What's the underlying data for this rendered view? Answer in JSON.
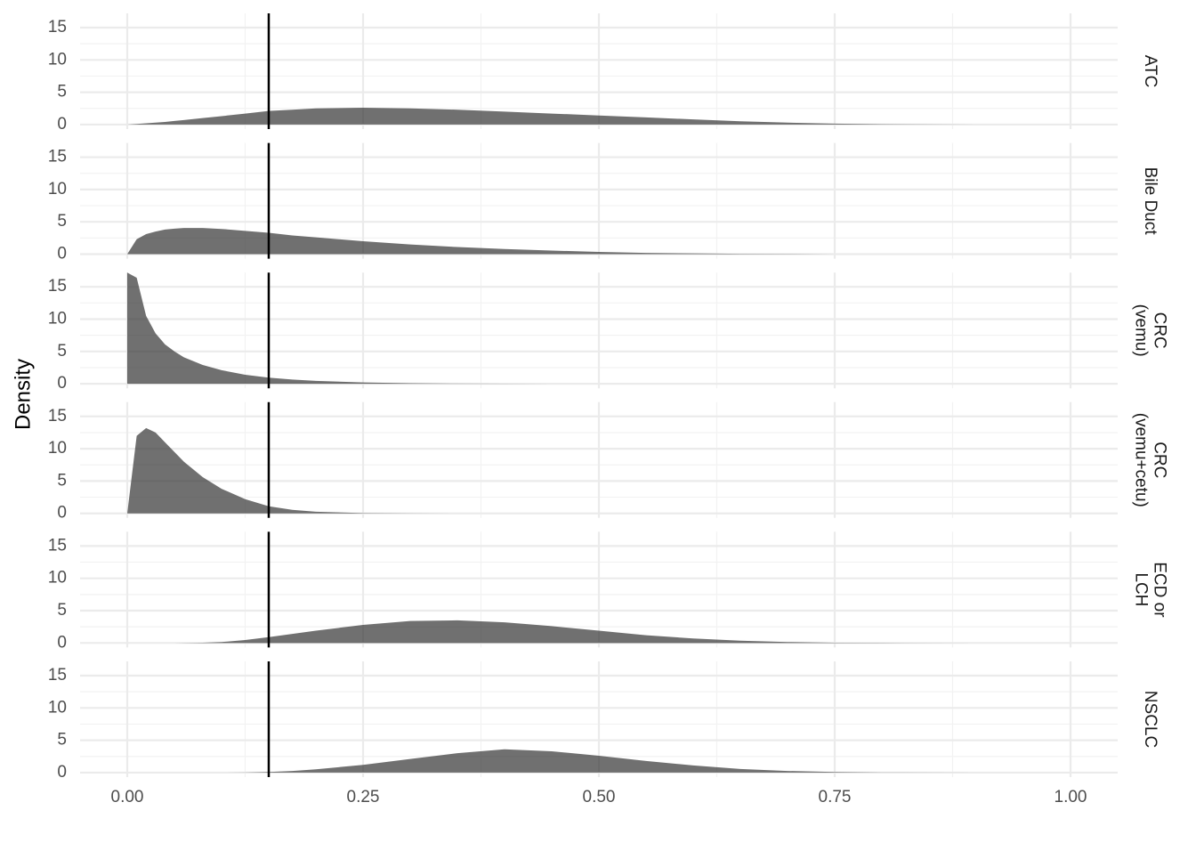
{
  "chart_data": {
    "type": "density",
    "y_label": "Density",
    "x": [
      0,
      0.01,
      0.02,
      0.03,
      0.04,
      0.05,
      0.06,
      0.08,
      0.1,
      0.125,
      0.15,
      0.175,
      0.2,
      0.25,
      0.3,
      0.35,
      0.4,
      0.45,
      0.5,
      0.55,
      0.6,
      0.65,
      0.7,
      0.75,
      0.8,
      0.9,
      1.0
    ],
    "series": [
      {
        "name": "ATC",
        "values": [
          0,
          0.1,
          0.2,
          0.3,
          0.4,
          0.55,
          0.7,
          1.0,
          1.3,
          1.7,
          2.1,
          2.3,
          2.5,
          2.6,
          2.5,
          2.3,
          2.0,
          1.7,
          1.4,
          1.1,
          0.8,
          0.5,
          0.3,
          0.15,
          0.05,
          0,
          0
        ]
      },
      {
        "name": "Bile Duct",
        "values": [
          0,
          2.3,
          3.1,
          3.5,
          3.8,
          3.95,
          4.05,
          4.05,
          3.9,
          3.6,
          3.3,
          2.9,
          2.6,
          2.0,
          1.5,
          1.1,
          0.8,
          0.55,
          0.35,
          0.2,
          0.12,
          0.06,
          0.03,
          0.01,
          0,
          0,
          0
        ]
      },
      {
        "name": "CRC\n(vemu)",
        "values": [
          17.2,
          16.4,
          10.5,
          7.8,
          6.1,
          5.0,
          4.1,
          2.9,
          2.1,
          1.4,
          0.95,
          0.65,
          0.45,
          0.2,
          0.08,
          0.03,
          0.01,
          0,
          0,
          0,
          0,
          0,
          0,
          0,
          0,
          0,
          0
        ]
      },
      {
        "name": "CRC\n(vemu+cetu)",
        "values": [
          0,
          12,
          13.2,
          12.5,
          11,
          9.5,
          8,
          5.6,
          3.8,
          2.2,
          1.1,
          0.55,
          0.25,
          0.05,
          0.01,
          0,
          0,
          0,
          0,
          0,
          0,
          0,
          0,
          0,
          0,
          0,
          0
        ]
      },
      {
        "name": "ECD or\nLCH",
        "values": [
          0,
          0,
          0,
          0,
          0,
          0,
          0.01,
          0.05,
          0.15,
          0.45,
          0.9,
          1.4,
          1.9,
          2.8,
          3.4,
          3.5,
          3.2,
          2.6,
          1.9,
          1.2,
          0.7,
          0.35,
          0.15,
          0.05,
          0.02,
          0,
          0
        ]
      },
      {
        "name": "NSCLC",
        "values": [
          0,
          0,
          0,
          0,
          0,
          0,
          0,
          0,
          0,
          0.03,
          0.1,
          0.25,
          0.5,
          1.2,
          2.1,
          3.0,
          3.6,
          3.3,
          2.6,
          1.8,
          1.1,
          0.55,
          0.25,
          0.1,
          0.03,
          0,
          0
        ]
      }
    ],
    "color": "#333333",
    "vline": 0.15,
    "xlim": [
      -0.05,
      1.05
    ],
    "xticks": [
      {
        "value": 0,
        "label": "0.00"
      },
      {
        "value": 0.25,
        "label": "0.25"
      },
      {
        "value": 0.5,
        "label": "0.50"
      },
      {
        "value": 0.75,
        "label": "0.75"
      },
      {
        "value": 1,
        "label": "1.00"
      }
    ],
    "x_minor_ticks": [
      0.125,
      0.375,
      0.625,
      0.875
    ],
    "ylim": [
      -0.7,
      17.2
    ],
    "yticks": [
      0,
      5,
      10,
      15
    ],
    "y_minor_ticks": [
      2.5,
      7.5,
      12.5
    ],
    "grid": true
  }
}
